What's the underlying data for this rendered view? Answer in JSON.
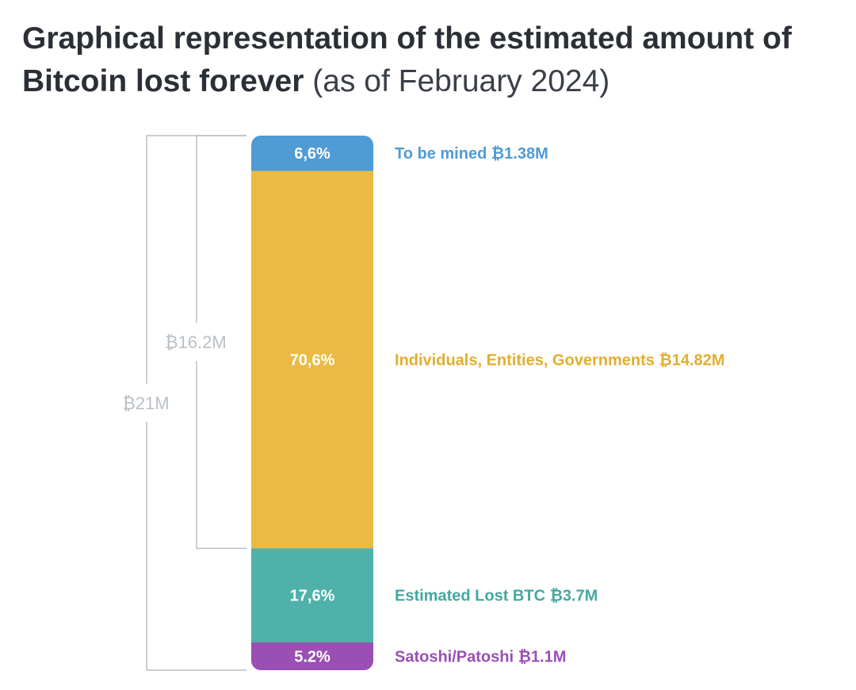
{
  "title": {
    "bold": "Graphical representation of the estimated amount of Bitcoin lost forever",
    "light": "(as of February 2024)"
  },
  "chart_data": {
    "type": "bar",
    "orientation": "vertical-stacked",
    "title": "Graphical representation of the estimated amount of Bitcoin lost forever (as of February 2024)",
    "xlabel": "",
    "ylabel": "",
    "grid": false,
    "legend": "right-labels",
    "segments": [
      {
        "key": "to-be-mined",
        "percent_label": "6,6%",
        "percent": 6.6,
        "name": "To be mined",
        "value_label": "₿1.38M",
        "value_millions": 1.38,
        "color": "#4f9bd6",
        "text_color": "#4f9bd6"
      },
      {
        "key": "individuals",
        "percent_label": "70,6%",
        "percent": 70.6,
        "name": "Individuals, Entities, Governments",
        "value_label": "₿14.82M",
        "value_millions": 14.82,
        "color": "#ebba42",
        "text_color": "#e3ad2e"
      },
      {
        "key": "estimated-lost",
        "percent_label": "17,6%",
        "percent": 17.6,
        "name": "Estimated Lost BTC",
        "value_label": "₿3.7M",
        "value_millions": 3.7,
        "color": "#4fb1a9",
        "text_color": "#45a8a0"
      },
      {
        "key": "satoshi",
        "percent_label": "5.2%",
        "percent": 5.2,
        "name": "Satoshi/Patoshi",
        "value_label": "₿1.1M",
        "value_millions": 1.1,
        "color": "#9a4fb4",
        "text_color": "#9a4fb4"
      }
    ],
    "brackets": [
      {
        "label": "₿16.2M",
        "value_millions": 16.2,
        "from_segment": 0,
        "to_segment": 1,
        "color": "#b9c0c6"
      },
      {
        "label": "₿21M",
        "value_millions": 21,
        "from_segment": 0,
        "to_segment": 3,
        "color": "#b9c0c6"
      }
    ]
  }
}
